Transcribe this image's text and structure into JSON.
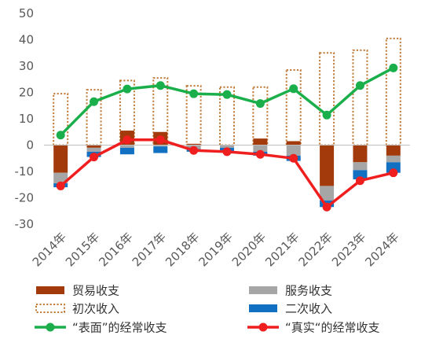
{
  "chart_data": {
    "type": "bar",
    "categories": [
      "2014年",
      "2015年",
      "2016年",
      "2017年",
      "2018年",
      "2019年",
      "2020年",
      "2021年",
      "2022年",
      "2023年",
      "2024年"
    ],
    "ylim": [
      -30,
      50
    ],
    "yticks": [
      -30,
      -20,
      -10,
      0,
      10,
      20,
      30,
      40,
      50
    ],
    "grid": false,
    "legend_position": "bottom",
    "series": [
      {
        "name": "贸易收支",
        "kind": "bar",
        "color": "#A33A0B",
        "values": [
          -10.5,
          -1,
          5.5,
          5,
          0.5,
          0,
          2.5,
          1.5,
          -15.5,
          -6.5,
          -4
        ]
      },
      {
        "name": "服务收支",
        "kind": "bar",
        "color": "#A6A6A6",
        "values": [
          -4,
          -1.5,
          -1,
          -0.5,
          -1.5,
          -1,
          -2.5,
          -4,
          -5.5,
          -3,
          -2.5
        ]
      },
      {
        "name": "初次收入",
        "kind": "bar-outline",
        "color": "#C07D3C",
        "values": [
          19.5,
          21,
          24.5,
          25.5,
          22.5,
          22,
          22,
          28.5,
          35,
          36,
          40.5
        ]
      },
      {
        "name": "二次收入",
        "kind": "bar",
        "color": "#1270C3",
        "values": [
          -1.5,
          -2,
          -2.5,
          -2.5,
          -1,
          -1.5,
          -1.5,
          -2,
          -2.5,
          -3.5,
          -4
        ]
      },
      {
        "name": "“表面”的经常收支",
        "kind": "line",
        "color": "#1AAF4B",
        "values": [
          3.8,
          16.5,
          21.3,
          22.6,
          19.5,
          19.2,
          15.8,
          21.4,
          11.4,
          22.6,
          29.3
        ]
      },
      {
        "name": "“真实“的经常收支",
        "kind": "line",
        "color": "#F01F1F",
        "values": [
          -15.5,
          -4.5,
          2,
          2,
          -2,
          -2.5,
          -3.5,
          -5,
          -23.5,
          -13.5,
          -10.5
        ]
      }
    ]
  }
}
